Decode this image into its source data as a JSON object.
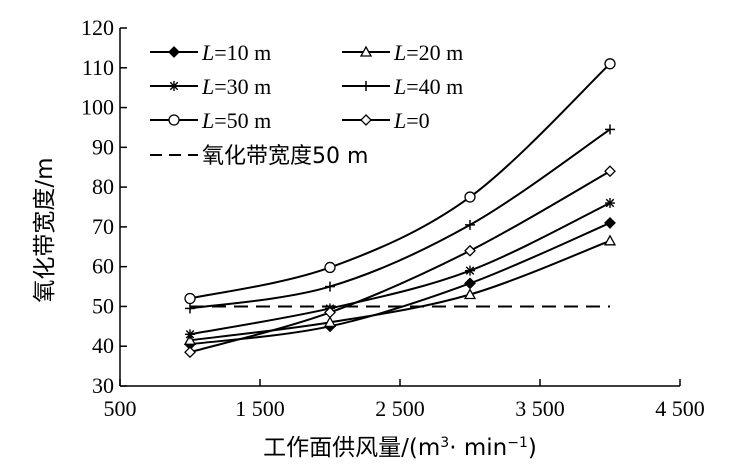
{
  "chart_data": {
    "type": "line",
    "xlabel_main": "工作面供风量/(m",
    "xlabel_sup1": "3",
    "xlabel_mid": "· min",
    "xlabel_sup2": "−1",
    "xlabel_end": ")",
    "ylabel": "氧化带宽度/m",
    "xlim": [
      500,
      4500
    ],
    "ylim": [
      30,
      120
    ],
    "xticks": [
      500,
      1500,
      2500,
      3500,
      4500
    ],
    "xtick_labels": [
      "500",
      "1 500",
      "2 500",
      "3 500",
      "4 500"
    ],
    "yticks": [
      30,
      40,
      50,
      60,
      70,
      80,
      90,
      100,
      110,
      120
    ],
    "ytick_labels": [
      "30",
      "40",
      "50",
      "60",
      "70",
      "80",
      "90",
      "100",
      "110",
      "120"
    ],
    "x": [
      1000,
      2000,
      3000,
      4000
    ],
    "series": [
      {
        "name": "L=10 m",
        "label_var": "L",
        "label_rest": "=10 m",
        "marker": "diamond-filled",
        "values": [
          40.5,
          45.0,
          55.8,
          71.0
        ]
      },
      {
        "name": "L=20 m",
        "label_var": "L",
        "label_rest": "=20 m",
        "marker": "triangle",
        "values": [
          41.5,
          46.0,
          53.0,
          66.5
        ]
      },
      {
        "name": "L=30 m",
        "label_var": "L",
        "label_rest": "=30 m",
        "marker": "star",
        "values": [
          43.0,
          49.5,
          59.0,
          76.0
        ]
      },
      {
        "name": "L=40 m",
        "label_var": "L",
        "label_rest": "=40 m",
        "marker": "plus",
        "values": [
          49.5,
          55.0,
          70.5,
          94.5
        ]
      },
      {
        "name": "L=50 m",
        "label_var": "L",
        "label_rest": "=50 m",
        "marker": "circle",
        "values": [
          52.0,
          59.8,
          77.5,
          111.0
        ]
      },
      {
        "name": "L=0",
        "label_var": "L",
        "label_rest": "=0",
        "marker": "diamond-open",
        "values": [
          38.5,
          48.5,
          64.0,
          84.0
        ]
      }
    ],
    "reference_line": {
      "name": "氧化带宽度50 m",
      "value": 50,
      "x_range": [
        1000,
        4000
      ],
      "style": "dashed"
    },
    "grid": false,
    "legend_position": "top-left"
  }
}
